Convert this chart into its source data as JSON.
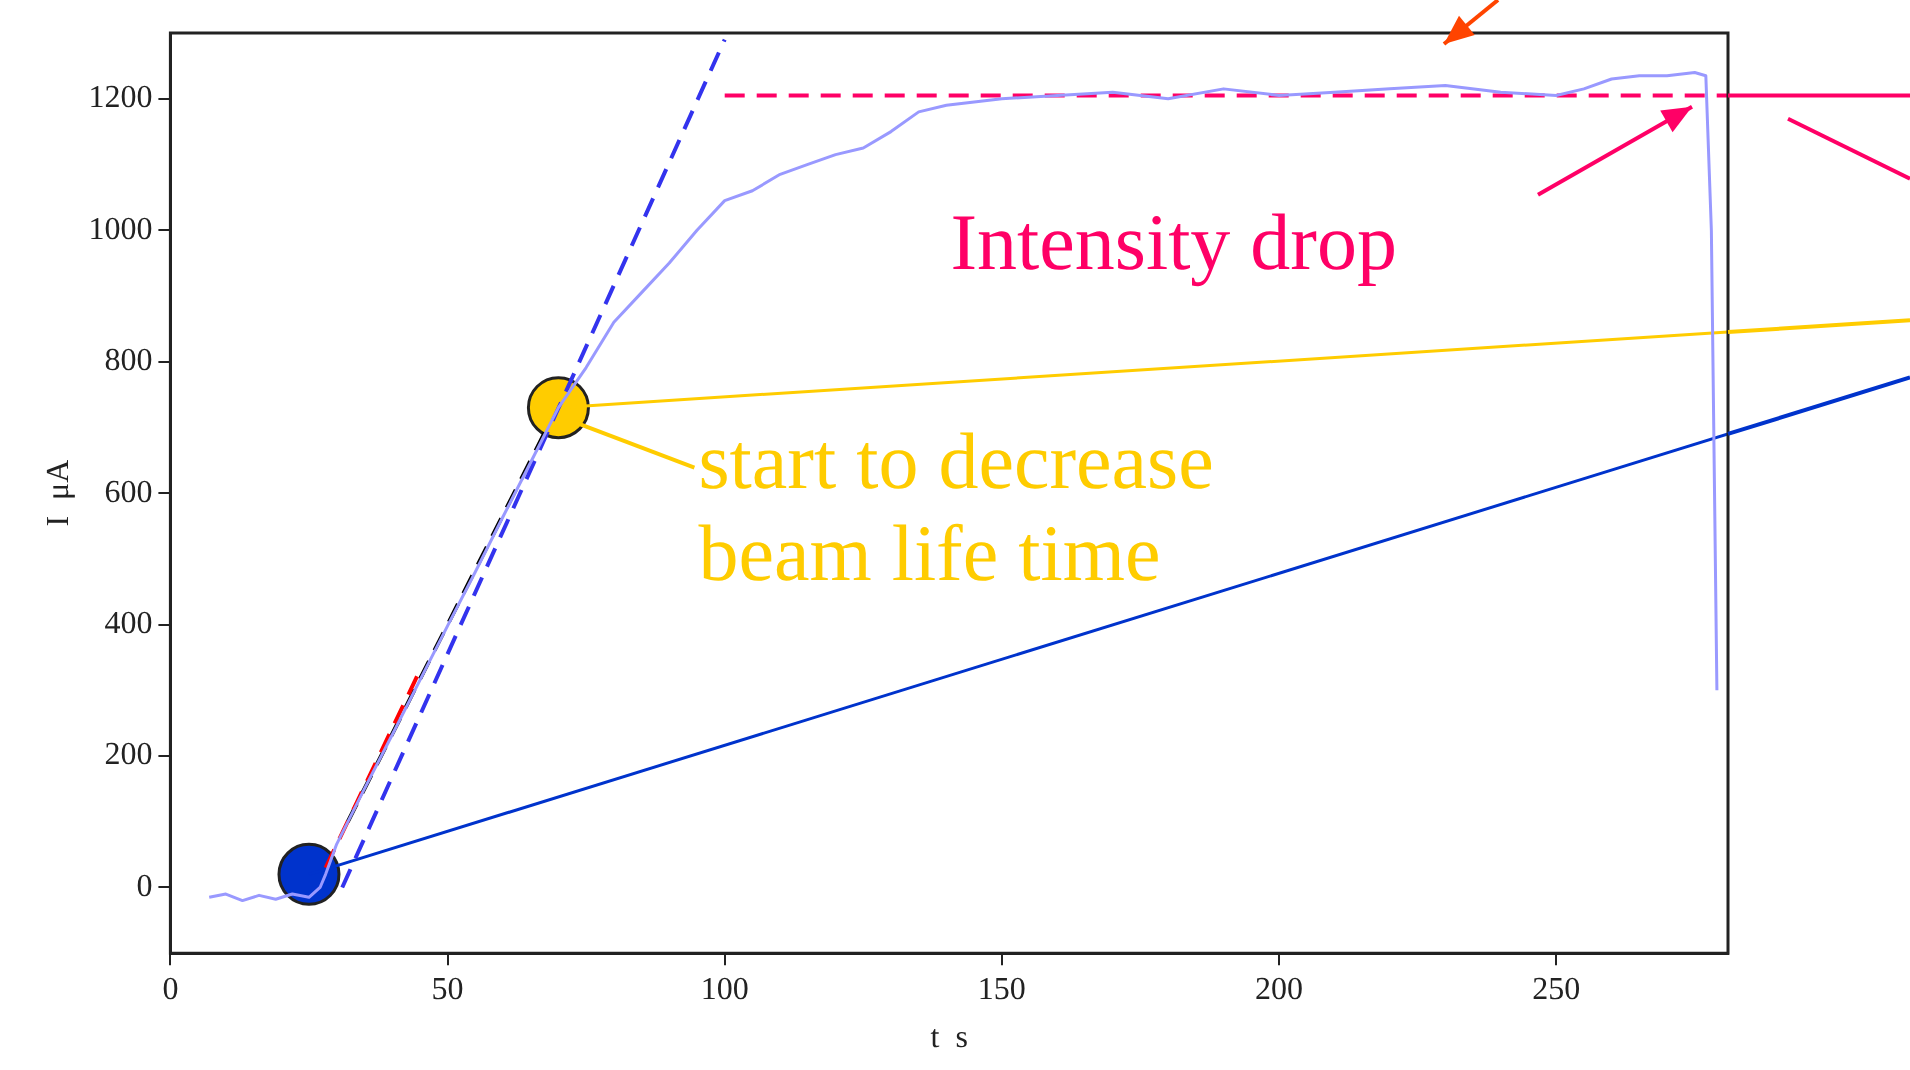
{
  "chart_data": {
    "type": "line",
    "xlabel": "t  s",
    "ylabel": "I  μA",
    "xlim": [
      0,
      281
    ],
    "ylim": [
      -100,
      1300
    ],
    "xticks": [
      0,
      50,
      100,
      150,
      200,
      250
    ],
    "yticks": [
      0,
      200,
      400,
      600,
      800,
      1000,
      1200
    ],
    "grid": false,
    "legend": false,
    "series": [
      {
        "color": "#9999ff",
        "x": [
          7,
          10,
          13,
          16,
          19,
          22,
          25,
          27,
          28,
          30,
          35,
          40,
          45,
          50,
          55,
          60,
          65,
          70,
          75,
          80,
          85,
          90,
          95,
          100,
          105,
          110,
          115,
          120,
          125,
          130,
          135,
          140,
          145,
          150,
          160,
          170,
          180,
          190,
          200,
          210,
          220,
          230,
          240,
          250,
          255,
          260,
          265,
          270,
          275,
          277,
          278,
          279
        ],
        "values": [
          -15,
          -10,
          -20,
          -12,
          -18,
          -10,
          -15,
          0,
          20,
          66,
          150,
          232,
          315,
          398,
          480,
          564,
          647,
          730,
          791,
          860,
          905,
          950,
          1000,
          1045,
          1060,
          1085,
          1100,
          1115,
          1125,
          1150,
          1180,
          1190,
          1195,
          1200,
          1205,
          1210,
          1200,
          1215,
          1205,
          1210,
          1215,
          1220,
          1210,
          1205,
          1215,
          1230,
          1235,
          1235,
          1240,
          1235,
          1000,
          300
        ]
      },
      {
        "type": "line",
        "color": "#3333ee",
        "line_style": "dashed",
        "x": [
          31,
          100
        ],
        "values": [
          0,
          1290
        ]
      },
      {
        "type": "line",
        "color": "#ff0000",
        "line_style": "dashed",
        "x": [
          28,
          45
        ],
        "values": [
          30,
          330
        ]
      },
      {
        "type": "line",
        "color": "#000000",
        "line_style": "dashed",
        "x": [
          32,
          68
        ],
        "values": [
          100,
          700
        ]
      },
      {
        "type": "line",
        "color": "#ff0066",
        "line_style": "dashed",
        "x": [
          100,
          281
        ],
        "values": [
          1205,
          1205
        ]
      },
      {
        "type": "line",
        "color": "#0033cc",
        "x": [
          25,
          281
        ],
        "values": [
          20,
          690
        ]
      },
      {
        "type": "line",
        "color": "#ffcc00",
        "x": [
          70,
          281
        ],
        "values": [
          730,
          845
        ]
      },
      {
        "type": "scatter",
        "color": "#0033cc",
        "marker": "circle",
        "x": [
          25
        ],
        "values": [
          20
        ]
      },
      {
        "type": "scatter",
        "color": "#ffcc00",
        "marker": "circle",
        "x": [
          70
        ],
        "values": [
          730
        ]
      }
    ],
    "annotations": [
      {
        "text": "start to decrease\nbeam life time",
        "x": 70,
        "y": 730
      },
      "Intensity drop"
    ]
  }
}
